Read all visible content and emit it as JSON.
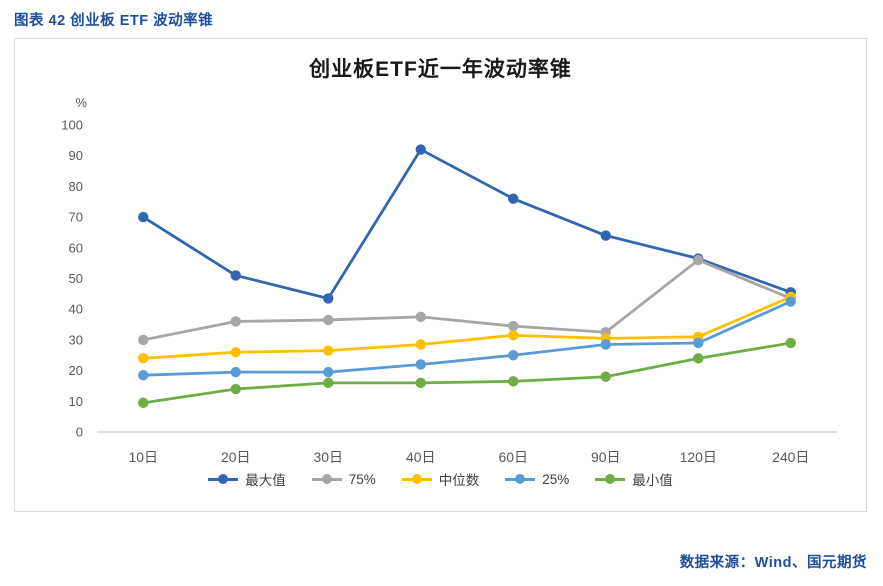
{
  "page": {
    "heading": "图表 42 创业板 ETF 波动率锥",
    "source": "数据来源：Wind、国元期货"
  },
  "chart_data": {
    "type": "line",
    "title": "创业板ETF近一年波动率锥",
    "y_unit_label": "%",
    "xlabel": "",
    "ylabel": "%",
    "categories": [
      "10日",
      "20日",
      "30日",
      "40日",
      "60日",
      "90日",
      "120日",
      "240日"
    ],
    "ylim": [
      0,
      100
    ],
    "ytick_step": 10,
    "grid": false,
    "legend_position": "bottom",
    "marker": "circle",
    "axis_color": "#BFBFBF",
    "series": [
      {
        "name": "最大值",
        "color": "#3465B0",
        "values": [
          70,
          51,
          43.5,
          92,
          76,
          64,
          56.5,
          45.5
        ]
      },
      {
        "name": "75%",
        "color": "#A6A6A6",
        "values": [
          30,
          36,
          36.5,
          37.5,
          34.5,
          32.5,
          56,
          43.5
        ]
      },
      {
        "name": "中位数",
        "color": "#FFC000",
        "values": [
          24,
          26,
          26.5,
          28.5,
          31.5,
          30.5,
          31,
          44
        ]
      },
      {
        "name": "25%",
        "color": "#5B9BD5",
        "values": [
          18.5,
          19.5,
          19.5,
          22,
          25,
          28.5,
          29,
          42.5
        ]
      },
      {
        "name": "最小值",
        "color": "#70AD47",
        "values": [
          9.5,
          14,
          16,
          16,
          16.5,
          18,
          24,
          29
        ]
      }
    ]
  }
}
